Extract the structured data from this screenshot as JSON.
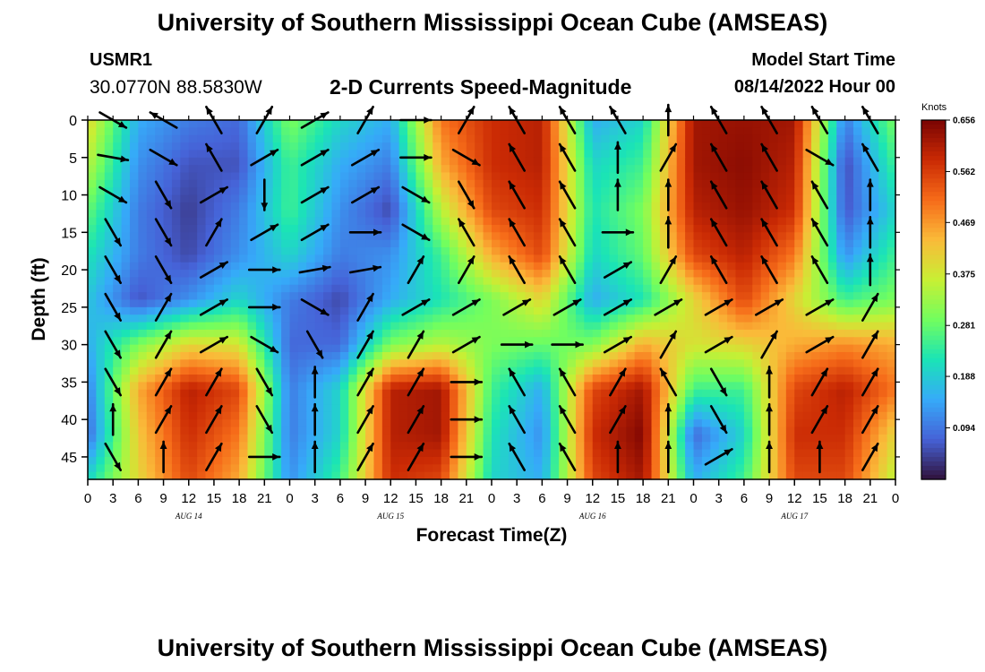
{
  "header": {
    "title": "University of Southern Mississippi Ocean Cube (AMSEAS)",
    "station": "USMR1",
    "coordinates": "30.0770N  88.5830W",
    "subtitle": "2-D Currents Speed-Magnitude",
    "model_start_label": "Model Start Time",
    "model_start_value": "08/14/2022 Hour 00"
  },
  "footer": {
    "title": "University of Southern Mississippi Ocean Cube (AMSEAS)"
  },
  "colors": {
    "arrow": "#000000",
    "colormap": [
      "#30123b",
      "#4662d7",
      "#36aaf9",
      "#1ae4b6",
      "#72fe5e",
      "#c8ef34",
      "#faba39",
      "#f66b19",
      "#ca2a04",
      "#7a0403"
    ]
  },
  "chart_data": {
    "type": "heatmap",
    "title": "2-D Currents Speed-Magnitude",
    "xlabel": "Forecast Time(Z)",
    "ylabel": "Depth (ft)",
    "x_range_hours": [
      0,
      96
    ],
    "x_tick_labels": [
      "0",
      "3",
      "6",
      "9",
      "12",
      "15",
      "18",
      "21",
      "0",
      "3",
      "6",
      "9",
      "12",
      "15",
      "18",
      "21",
      "0",
      "3",
      "6",
      "9",
      "12",
      "15",
      "18",
      "21",
      "0",
      "3",
      "6",
      "9",
      "12",
      "15",
      "18",
      "21",
      "0"
    ],
    "date_labels": [
      "AUG 14",
      "AUG 15",
      "AUG 16",
      "AUG 17"
    ],
    "y_range_ft": [
      0,
      48
    ],
    "y_ticks": [
      0,
      5,
      10,
      15,
      20,
      25,
      30,
      35,
      40,
      45
    ],
    "colorbar": {
      "unit": "Knots",
      "min": 0.0,
      "max": 0.656,
      "ticks": [
        "0.656",
        "0.562",
        "0.469",
        "0.375",
        "0.281",
        "0.188",
        "0.094"
      ]
    },
    "speed_grid": {
      "depths_ft": [
        0,
        6,
        12,
        18,
        24,
        30,
        36,
        42,
        48
      ],
      "hours": [
        0,
        6,
        12,
        18,
        24,
        30,
        36,
        42,
        48,
        54,
        60,
        66,
        72,
        78,
        84,
        90,
        96
      ],
      "values": [
        [
          0.4,
          0.15,
          0.1,
          0.08,
          0.3,
          0.2,
          0.15,
          0.5,
          0.58,
          0.6,
          0.15,
          0.2,
          0.62,
          0.63,
          0.62,
          0.1,
          0.3
        ],
        [
          0.35,
          0.12,
          0.06,
          0.06,
          0.25,
          0.15,
          0.1,
          0.45,
          0.58,
          0.6,
          0.2,
          0.25,
          0.62,
          0.64,
          0.6,
          0.05,
          0.25
        ],
        [
          0.28,
          0.1,
          0.04,
          0.1,
          0.25,
          0.12,
          0.05,
          0.35,
          0.55,
          0.58,
          0.22,
          0.3,
          0.6,
          0.63,
          0.58,
          0.06,
          0.2
        ],
        [
          0.22,
          0.1,
          0.05,
          0.12,
          0.2,
          0.1,
          0.12,
          0.25,
          0.45,
          0.55,
          0.2,
          0.28,
          0.55,
          0.6,
          0.5,
          0.12,
          0.25
        ],
        [
          0.18,
          0.06,
          0.12,
          0.2,
          0.1,
          0.05,
          0.15,
          0.22,
          0.3,
          0.4,
          0.15,
          0.22,
          0.4,
          0.55,
          0.4,
          0.25,
          0.3
        ],
        [
          0.15,
          0.3,
          0.4,
          0.38,
          0.08,
          0.08,
          0.3,
          0.35,
          0.3,
          0.28,
          0.3,
          0.45,
          0.38,
          0.4,
          0.45,
          0.48,
          0.45
        ],
        [
          0.1,
          0.45,
          0.6,
          0.55,
          0.1,
          0.2,
          0.6,
          0.62,
          0.25,
          0.15,
          0.55,
          0.62,
          0.25,
          0.25,
          0.55,
          0.6,
          0.5
        ],
        [
          0.08,
          0.42,
          0.58,
          0.5,
          0.1,
          0.2,
          0.6,
          0.62,
          0.22,
          0.12,
          0.58,
          0.65,
          0.08,
          0.2,
          0.58,
          0.58,
          0.4
        ],
        [
          0.2,
          0.4,
          0.55,
          0.45,
          0.12,
          0.25,
          0.58,
          0.55,
          0.2,
          0.15,
          0.55,
          0.62,
          0.15,
          0.25,
          0.55,
          0.55,
          0.35
        ]
      ]
    },
    "arrow_grid": {
      "depths_ft": [
        0,
        5,
        10,
        15,
        20,
        25,
        30,
        35,
        40,
        45
      ],
      "hours": [
        3,
        9,
        15,
        21,
        27,
        33,
        39,
        45,
        51,
        57,
        63,
        69,
        75,
        81,
        87,
        93
      ],
      "direction_deg": [
        [
          120,
          300,
          330,
          30,
          60,
          30,
          90,
          30,
          330,
          330,
          330,
          0,
          330,
          330,
          330,
          330
        ],
        [
          100,
          120,
          330,
          60,
          60,
          60,
          90,
          120,
          330,
          330,
          0,
          30,
          330,
          330,
          120,
          330
        ],
        [
          120,
          150,
          60,
          180,
          60,
          60,
          120,
          150,
          330,
          330,
          0,
          0,
          330,
          330,
          330,
          0
        ],
        [
          150,
          150,
          30,
          60,
          60,
          90,
          120,
          330,
          330,
          330,
          90,
          0,
          330,
          330,
          330,
          0
        ],
        [
          150,
          150,
          60,
          90,
          80,
          80,
          30,
          30,
          330,
          330,
          60,
          30,
          330,
          330,
          330,
          0
        ],
        [
          150,
          30,
          60,
          90,
          120,
          30,
          60,
          60,
          60,
          60,
          60,
          60,
          60,
          60,
          60,
          30
        ],
        [
          150,
          30,
          60,
          120,
          150,
          30,
          30,
          60,
          90,
          90,
          60,
          30,
          60,
          30,
          60,
          30
        ],
        [
          150,
          30,
          30,
          150,
          0,
          30,
          30,
          90,
          330,
          330,
          30,
          330,
          150,
          0,
          30,
          30
        ],
        [
          0,
          30,
          30,
          150,
          0,
          30,
          30,
          90,
          330,
          330,
          30,
          0,
          150,
          0,
          30,
          30
        ],
        [
          150,
          0,
          30,
          90,
          0,
          30,
          30,
          90,
          330,
          330,
          0,
          0,
          60,
          0,
          0,
          30
        ]
      ]
    }
  }
}
